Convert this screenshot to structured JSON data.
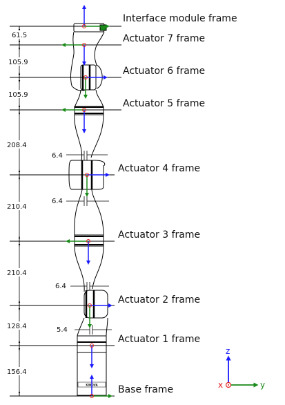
{
  "frames": [
    {
      "label": "Interface module frame"
    },
    {
      "label": "Actuator 7 frame"
    },
    {
      "label": "Actuator 6 frame"
    },
    {
      "label": "Actuator 5 frame"
    },
    {
      "label": "Actuator 4 frame"
    },
    {
      "label": "Actuator 3 frame"
    },
    {
      "label": "Actuator 2 frame"
    },
    {
      "label": "Actuator 1 frame"
    },
    {
      "label": "Base frame"
    }
  ],
  "dimensions": {
    "vertical": [
      "61.5",
      "105.9",
      "105.9",
      "208.4",
      "210.4",
      "210.4",
      "128.4",
      "156.4"
    ],
    "offsets": [
      "6.4",
      "6.4",
      "6.4",
      "5.4"
    ]
  },
  "legend": {
    "z": "z",
    "x": "x",
    "y": "y"
  },
  "base_brand": "KINOVA",
  "colors": {
    "z_axis": "#1a1aff",
    "y_axis": "#1a8a1a",
    "origin": "#e02020",
    "line": "#000000"
  }
}
